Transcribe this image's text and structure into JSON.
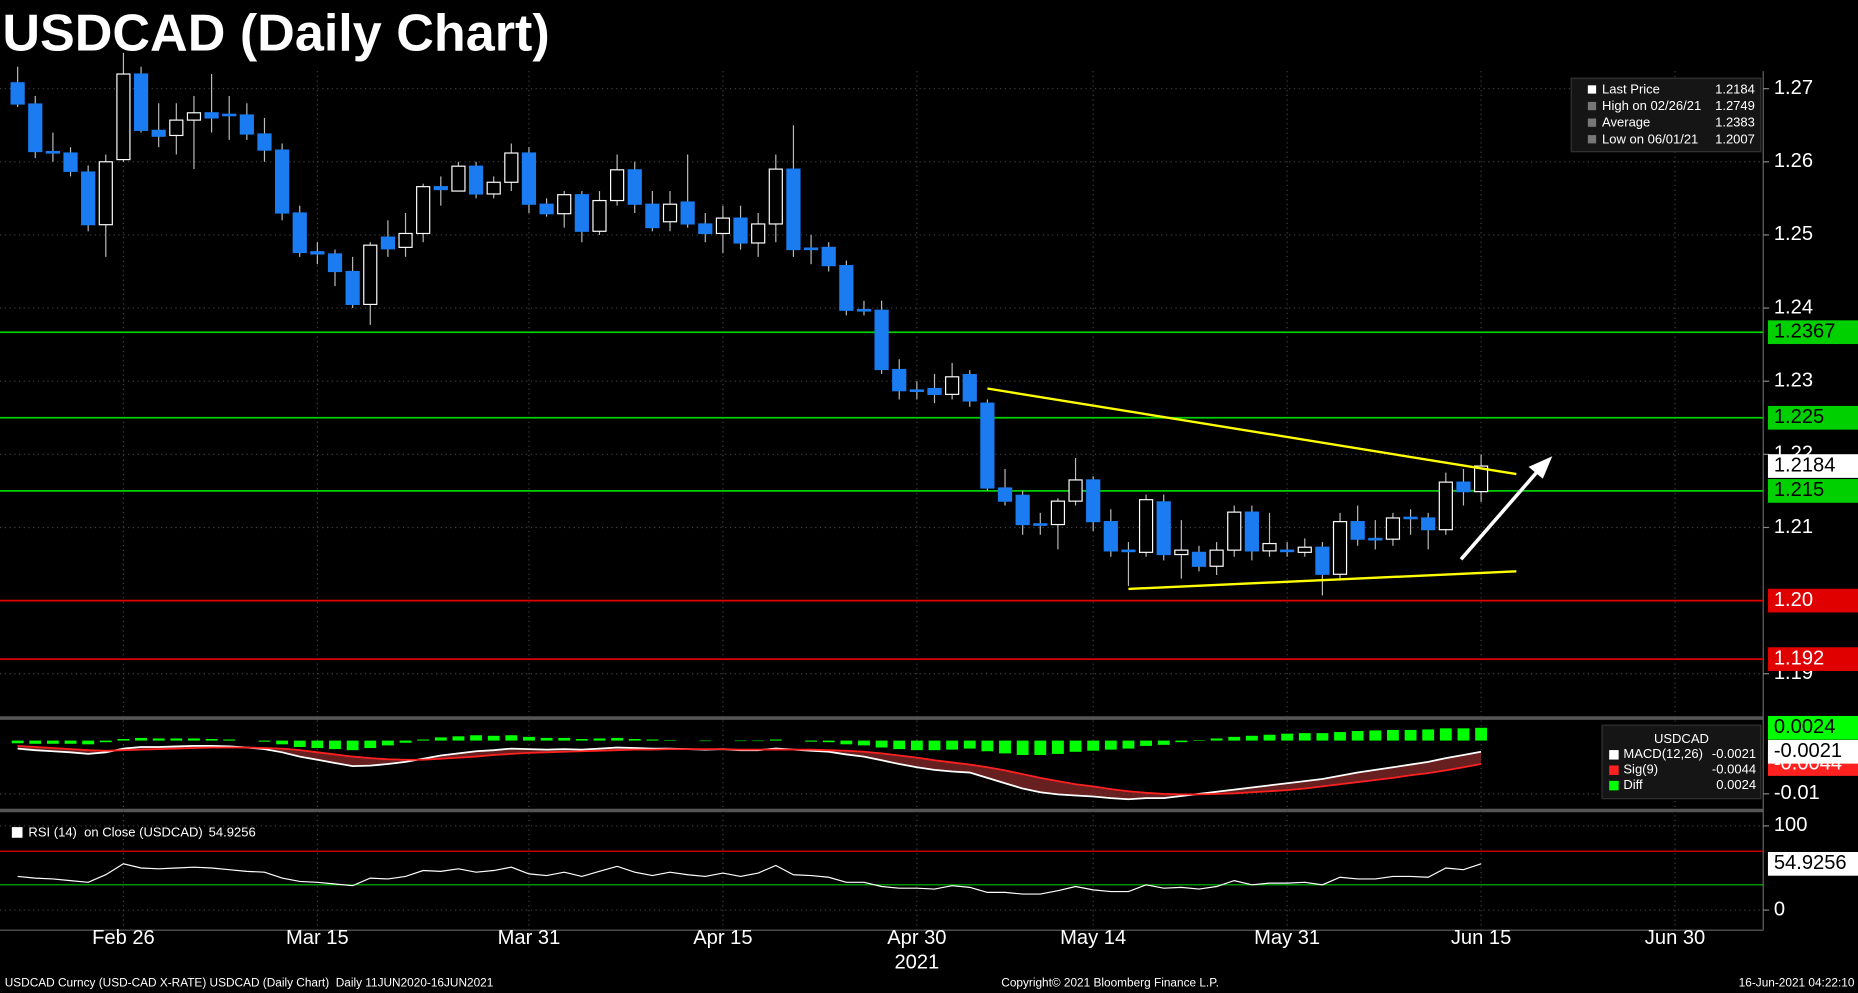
{
  "footer": {
    "left": "USDCAD Curncy (USD-CAD X-RATE) USDCAD (Daily Chart)  Daily 11JUN2020-16JUN2021",
    "center": "Copyright© 2021 Bloomberg Finance L.P.",
    "right": "16-Jun-2021 04:22:10"
  },
  "chart_data": [
    {
      "type": "candlestick",
      "title": "USDCAD (Daily Chart)",
      "x": [
        "2021-02-18",
        "2021-02-19",
        "2021-02-22",
        "2021-02-23",
        "2021-02-24",
        "2021-02-25",
        "2021-02-26",
        "2021-03-01",
        "2021-03-02",
        "2021-03-03",
        "2021-03-04",
        "2021-03-05",
        "2021-03-08",
        "2021-03-09",
        "2021-03-10",
        "2021-03-11",
        "2021-03-12",
        "2021-03-15",
        "2021-03-16",
        "2021-03-17",
        "2021-03-18",
        "2021-03-19",
        "2021-03-22",
        "2021-03-23",
        "2021-03-24",
        "2021-03-25",
        "2021-03-26",
        "2021-03-29",
        "2021-03-30",
        "2021-03-31",
        "2021-04-01",
        "2021-04-02",
        "2021-04-05",
        "2021-04-06",
        "2021-04-07",
        "2021-04-08",
        "2021-04-09",
        "2021-04-12",
        "2021-04-13",
        "2021-04-14",
        "2021-04-15",
        "2021-04-16",
        "2021-04-19",
        "2021-04-20",
        "2021-04-21",
        "2021-04-22",
        "2021-04-23",
        "2021-04-26",
        "2021-04-27",
        "2021-04-28",
        "2021-04-29",
        "2021-04-30",
        "2021-05-03",
        "2021-05-04",
        "2021-05-05",
        "2021-05-06",
        "2021-05-07",
        "2021-05-10",
        "2021-05-11",
        "2021-05-12",
        "2021-05-13",
        "2021-05-14",
        "2021-05-17",
        "2021-05-18",
        "2021-05-19",
        "2021-05-20",
        "2021-05-21",
        "2021-05-24",
        "2021-05-25",
        "2021-05-26",
        "2021-05-27",
        "2021-05-28",
        "2021-05-31",
        "2021-06-01",
        "2021-06-02",
        "2021-06-03",
        "2021-06-04",
        "2021-06-07",
        "2021-06-08",
        "2021-06-09",
        "2021-06-10",
        "2021-06-11",
        "2021-06-14",
        "2021-06-15"
      ],
      "open": [
        1.2708,
        1.2679,
        1.2614,
        1.2612,
        1.2586,
        1.2514,
        1.2603,
        1.272,
        1.2643,
        1.2636,
        1.2657,
        1.2667,
        1.2665,
        1.2664,
        1.2638,
        1.2616,
        1.253,
        1.2477,
        1.2474,
        1.245,
        1.2405,
        1.2497,
        1.2483,
        1.2502,
        1.2566,
        1.256,
        1.2594,
        1.2556,
        1.2572,
        1.2612,
        1.2542,
        1.2529,
        1.2555,
        1.2505,
        1.2547,
        1.2589,
        1.2542,
        1.2518,
        1.2545,
        1.2515,
        1.2502,
        1.2523,
        1.2489,
        1.2515,
        1.259,
        1.2482,
        1.2483,
        1.2458,
        1.2398,
        1.2397,
        1.2316,
        1.2288,
        1.229,
        1.2282,
        1.2309,
        1.227,
        1.2154,
        1.2144,
        1.2105,
        1.2104,
        1.2136,
        1.2165,
        1.2108,
        1.2069,
        1.2066,
        1.2135,
        1.2063,
        1.2066,
        1.2047,
        1.2069,
        1.2121,
        1.2068,
        1.2069,
        1.2066,
        1.2073,
        1.2036,
        1.2108,
        1.2085,
        1.2084,
        1.2114,
        1.2113,
        1.2097,
        1.2162,
        1.2149
      ],
      "high": [
        1.273,
        1.269,
        1.264,
        1.262,
        1.2595,
        1.261,
        1.2749,
        1.273,
        1.268,
        1.268,
        1.269,
        1.272,
        1.269,
        1.268,
        1.266,
        1.2625,
        1.254,
        1.249,
        1.248,
        1.247,
        1.249,
        1.252,
        1.253,
        1.257,
        1.258,
        1.26,
        1.26,
        1.258,
        1.2625,
        1.262,
        1.255,
        1.256,
        1.256,
        1.256,
        1.261,
        1.26,
        1.256,
        1.256,
        1.261,
        1.253,
        1.254,
        1.254,
        1.253,
        1.261,
        1.265,
        1.25,
        1.249,
        1.2465,
        1.241,
        1.241,
        1.233,
        1.23,
        1.231,
        1.2325,
        1.2315,
        1.2275,
        1.218,
        1.215,
        1.212,
        1.214,
        1.2195,
        1.217,
        1.2125,
        1.208,
        1.2145,
        1.2145,
        1.211,
        1.2075,
        1.208,
        1.213,
        1.213,
        1.212,
        1.208,
        1.2085,
        1.208,
        1.212,
        1.213,
        1.211,
        1.212,
        1.2125,
        1.212,
        1.2175,
        1.218,
        1.22
      ],
      "low": [
        1.2675,
        1.2605,
        1.26,
        1.258,
        1.2505,
        1.247,
        1.26,
        1.264,
        1.262,
        1.261,
        1.259,
        1.264,
        1.263,
        1.263,
        1.26,
        1.252,
        1.247,
        1.246,
        1.243,
        1.24,
        1.2377,
        1.247,
        1.247,
        1.249,
        1.254,
        1.256,
        1.255,
        1.255,
        1.256,
        1.253,
        1.2525,
        1.251,
        1.249,
        1.25,
        1.254,
        1.253,
        1.2505,
        1.2505,
        1.251,
        1.249,
        1.2475,
        1.248,
        1.247,
        1.249,
        1.247,
        1.246,
        1.245,
        1.239,
        1.239,
        1.231,
        1.2275,
        1.2275,
        1.227,
        1.2275,
        1.2265,
        1.215,
        1.213,
        1.209,
        1.209,
        1.207,
        1.213,
        1.2095,
        1.206,
        1.202,
        1.206,
        1.2055,
        1.203,
        1.204,
        1.2035,
        1.206,
        1.2055,
        1.206,
        1.206,
        1.206,
        1.2007,
        1.203,
        1.2075,
        1.207,
        1.2075,
        1.209,
        1.207,
        1.209,
        1.213,
        1.2135
      ],
      "close": [
        1.2679,
        1.2614,
        1.2612,
        1.2587,
        1.2514,
        1.26,
        1.272,
        1.2643,
        1.2635,
        1.2657,
        1.2667,
        1.266,
        1.2663,
        1.2638,
        1.2616,
        1.253,
        1.2476,
        1.2474,
        1.245,
        1.2405,
        1.2486,
        1.2481,
        1.2502,
        1.2566,
        1.2562,
        1.2594,
        1.2556,
        1.2572,
        1.2612,
        1.2542,
        1.2529,
        1.2555,
        1.2505,
        1.2547,
        1.2589,
        1.2542,
        1.251,
        1.2542,
        1.2515,
        1.2502,
        1.2523,
        1.2489,
        1.2515,
        1.259,
        1.248,
        1.248,
        1.2458,
        1.2397,
        1.2396,
        1.2316,
        1.2287,
        1.2286,
        1.2282,
        1.2306,
        1.2273,
        1.2154,
        1.2136,
        1.2104,
        1.2103,
        1.2136,
        1.2165,
        1.2108,
        1.2068,
        1.2067,
        1.2138,
        1.2063,
        1.2069,
        1.2047,
        1.2069,
        1.2121,
        1.2068,
        1.2078,
        1.2067,
        1.2073,
        1.2036,
        1.2108,
        1.2084,
        1.2083,
        1.2113,
        1.2112,
        1.2097,
        1.2162,
        1.2149,
        1.2184
      ],
      "up_color": "#ffffff",
      "down_color": "#1a7cf0",
      "wick_color": "#bbbbbb",
      "xlim": [
        "2021-02-17",
        "2021-07-07"
      ],
      "xticks": [
        {
          "value": "2021-02-26",
          "label": "Feb 26"
        },
        {
          "value": "2021-03-15",
          "label": "Mar 15"
        },
        {
          "value": "2021-03-31",
          "label": "Mar 31"
        },
        {
          "value": "2021-04-15",
          "label": "Apr 15"
        },
        {
          "value": "2021-04-30",
          "label": "Apr 30"
        },
        {
          "value": "2021-05-14",
          "label": "May 14"
        },
        {
          "value": "2021-05-31",
          "label": "May 31"
        },
        {
          "value": "2021-06-15",
          "label": "Jun 15"
        },
        {
          "value": "2021-06-30",
          "label": "Jun 30"
        }
      ],
      "xlabel": "2021",
      "ylim": [
        1.1841,
        1.2724
      ],
      "yticks": [
        1.19,
        1.21,
        1.22,
        1.23,
        1.24,
        1.25,
        1.26,
        1.27
      ],
      "grid": true,
      "levels": [
        {
          "value": 1.2367,
          "color": "#00d000"
        },
        {
          "value": 1.225,
          "color": "#00d000"
        },
        {
          "value": 1.215,
          "color": "#00d000"
        },
        {
          "value": 1.2,
          "label": "1.20",
          "color": "#e00000"
        },
        {
          "value": 1.192,
          "color": "#e00000"
        }
      ],
      "trendlines": [
        {
          "color": "#ffff00",
          "points": [
            {
              "x": "2021-05-06",
              "y": 1.229
            },
            {
              "x": "2021-06-17",
              "y": 1.2173
            }
          ]
        },
        {
          "color": "#ffff00",
          "points": [
            {
              "x": "2021-05-18",
              "y": 1.2016
            },
            {
              "x": "2021-06-17",
              "y": 1.204
            }
          ]
        }
      ],
      "legend": {
        "last": "Last Price",
        "high": "High on 02/26/21",
        "average": "Average",
        "average_value": 1.2383,
        "low": "Low on 06/01/21"
      }
    },
    {
      "type": "macd",
      "legend_title": "USDCAD",
      "series": [
        {
          "name": "MACD(12,26)",
          "color": "#ffffff",
          "values": [
            -0.0015,
            -0.0018,
            -0.002,
            -0.0022,
            -0.0025,
            -0.0022,
            -0.0015,
            -0.0012,
            -0.0012,
            -0.0011,
            -0.001,
            -0.001,
            -0.0011,
            -0.0013,
            -0.0016,
            -0.0022,
            -0.003,
            -0.0036,
            -0.0042,
            -0.0048,
            -0.0047,
            -0.0044,
            -0.004,
            -0.0034,
            -0.0028,
            -0.0024,
            -0.002,
            -0.0018,
            -0.0015,
            -0.0016,
            -0.0017,
            -0.0016,
            -0.0017,
            -0.0015,
            -0.0013,
            -0.0014,
            -0.0015,
            -0.0015,
            -0.0016,
            -0.0017,
            -0.0016,
            -0.0018,
            -0.0018,
            -0.0015,
            -0.0017,
            -0.0019,
            -0.0021,
            -0.0026,
            -0.003,
            -0.0037,
            -0.0044,
            -0.005,
            -0.0055,
            -0.0058,
            -0.006,
            -0.007,
            -0.008,
            -0.009,
            -0.0097,
            -0.0101,
            -0.0103,
            -0.0105,
            -0.0108,
            -0.011,
            -0.0108,
            -0.0108,
            -0.0104,
            -0.01,
            -0.0096,
            -0.0092,
            -0.0088,
            -0.0084,
            -0.008,
            -0.0076,
            -0.0072,
            -0.0066,
            -0.006,
            -0.0055,
            -0.005,
            -0.0045,
            -0.004,
            -0.0033,
            -0.0027,
            -0.0021
          ]
        },
        {
          "name": "Sig(9)",
          "color": "#ff2020",
          "values": [
            -0.001,
            -0.0012,
            -0.0014,
            -0.0016,
            -0.0018,
            -0.0019,
            -0.0018,
            -0.0017,
            -0.0016,
            -0.0015,
            -0.0014,
            -0.0013,
            -0.0013,
            -0.0013,
            -0.0014,
            -0.0015,
            -0.0018,
            -0.0022,
            -0.0026,
            -0.003,
            -0.0033,
            -0.0035,
            -0.0036,
            -0.0036,
            -0.0034,
            -0.0032,
            -0.003,
            -0.0027,
            -0.0025,
            -0.0023,
            -0.0022,
            -0.0021,
            -0.002,
            -0.0019,
            -0.0018,
            -0.0017,
            -0.0017,
            -0.0016,
            -0.0016,
            -0.0016,
            -0.0016,
            -0.0017,
            -0.0017,
            -0.0017,
            -0.0017,
            -0.0017,
            -0.0018,
            -0.0019,
            -0.0021,
            -0.0024,
            -0.0028,
            -0.0032,
            -0.0037,
            -0.0041,
            -0.0045,
            -0.005,
            -0.0056,
            -0.0063,
            -0.007,
            -0.0076,
            -0.0082,
            -0.0086,
            -0.0091,
            -0.0095,
            -0.0098,
            -0.01,
            -0.0101,
            -0.0101,
            -0.01,
            -0.0099,
            -0.0097,
            -0.0095,
            -0.0093,
            -0.009,
            -0.0086,
            -0.0082,
            -0.0078,
            -0.0074,
            -0.007,
            -0.0065,
            -0.0061,
            -0.0056,
            -0.005,
            -0.0044
          ]
        },
        {
          "name": "Diff",
          "color": "#00ff00",
          "values": [
            -0.0005,
            -0.0006,
            -0.0006,
            -0.0006,
            -0.0007,
            -0.0003,
            0.0003,
            0.0005,
            0.0004,
            0.0004,
            0.0004,
            0.0003,
            0.0002,
            0,
            -0.0002,
            -0.0007,
            -0.0012,
            -0.0014,
            -0.0016,
            -0.0018,
            -0.0014,
            -0.0009,
            -0.0004,
            0.0002,
            0.0006,
            0.0008,
            0.001,
            0.0009,
            0.001,
            0.0007,
            0.0005,
            0.0005,
            0.0003,
            0.0004,
            0.0005,
            0.0003,
            0.0002,
            0.0001,
            0,
            -0.0001,
            0,
            -0.0001,
            -0.0001,
            0.0002,
            0,
            -0.0002,
            -0.0003,
            -0.0007,
            -0.0009,
            -0.0013,
            -0.0016,
            -0.0018,
            -0.0018,
            -0.0017,
            -0.0015,
            -0.002,
            -0.0024,
            -0.0027,
            -0.0027,
            -0.0025,
            -0.0021,
            -0.0019,
            -0.0017,
            -0.0015,
            -0.001,
            -0.0008,
            -0.0003,
            0.0001,
            0.0004,
            0.0007,
            0.0009,
            0.0011,
            0.0013,
            0.0014,
            0.0014,
            0.0016,
            0.0018,
            0.0019,
            0.002,
            0.002,
            0.0021,
            0.0023,
            0.0023,
            0.0024
          ]
        }
      ],
      "ylim": [
        -0.0129,
        0.004
      ],
      "yticks": [
        -0.01
      ]
    },
    {
      "type": "line",
      "series": [
        {
          "name": "RSI (14)  on Close (USDCAD)",
          "color": "#ffffff",
          "values": [
            40,
            38,
            37,
            35,
            33,
            42,
            55,
            50,
            49,
            50,
            51,
            50,
            48,
            46,
            45,
            38,
            34,
            33,
            31,
            29,
            38,
            37,
            40,
            47,
            46,
            49,
            45,
            47,
            51,
            43,
            41,
            45,
            40,
            46,
            52,
            45,
            41,
            45,
            42,
            40,
            44,
            40,
            44,
            53,
            42,
            41,
            39,
            33,
            33,
            28,
            26,
            26,
            25,
            29,
            27,
            21,
            21,
            19,
            19,
            23,
            28,
            24,
            22,
            22,
            30,
            26,
            27,
            25,
            28,
            35,
            30,
            32,
            32,
            33,
            30,
            39,
            37,
            37,
            40,
            40,
            39,
            50,
            48,
            54.9256
          ]
        }
      ],
      "ylim": [
        -23.9,
        116.9
      ],
      "yticks": [
        0,
        100
      ],
      "levels": [
        {
          "value": 70,
          "color": "#ff0000"
        },
        {
          "value": 30,
          "color": "#00c000"
        }
      ]
    }
  ]
}
